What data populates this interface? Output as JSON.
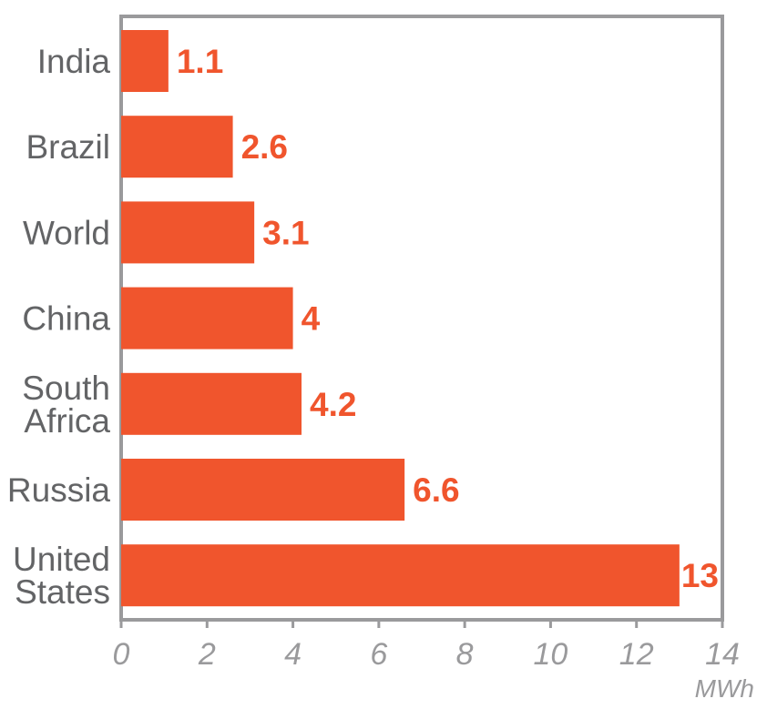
{
  "chart_data": {
    "type": "bar",
    "orientation": "horizontal",
    "categories": [
      "India",
      "Brazil",
      "World",
      "China",
      "South Africa",
      "Russia",
      "United States"
    ],
    "category_lines": [
      [
        "India"
      ],
      [
        "Brazil"
      ],
      [
        "World"
      ],
      [
        "China"
      ],
      [
        "South",
        "Africa"
      ],
      [
        "Russia"
      ],
      [
        "United",
        "States"
      ]
    ],
    "values": [
      1.1,
      2.6,
      3.1,
      4,
      4.2,
      6.6,
      13
    ],
    "value_labels": [
      "1.1",
      "2.6",
      "3.1",
      "4",
      "4.2",
      "6.6",
      "13"
    ],
    "xlim": [
      0,
      14
    ],
    "x_ticks": [
      "0",
      "2",
      "4",
      "6",
      "8",
      "10",
      "12",
      "14"
    ],
    "x_unit": "MWh",
    "grid": false,
    "colors": {
      "bar": "#f0552d",
      "value_label": "#f0552d",
      "category_label": "#636466",
      "frame": "#9a9a9c",
      "tick": "#9a9a9c"
    }
  }
}
